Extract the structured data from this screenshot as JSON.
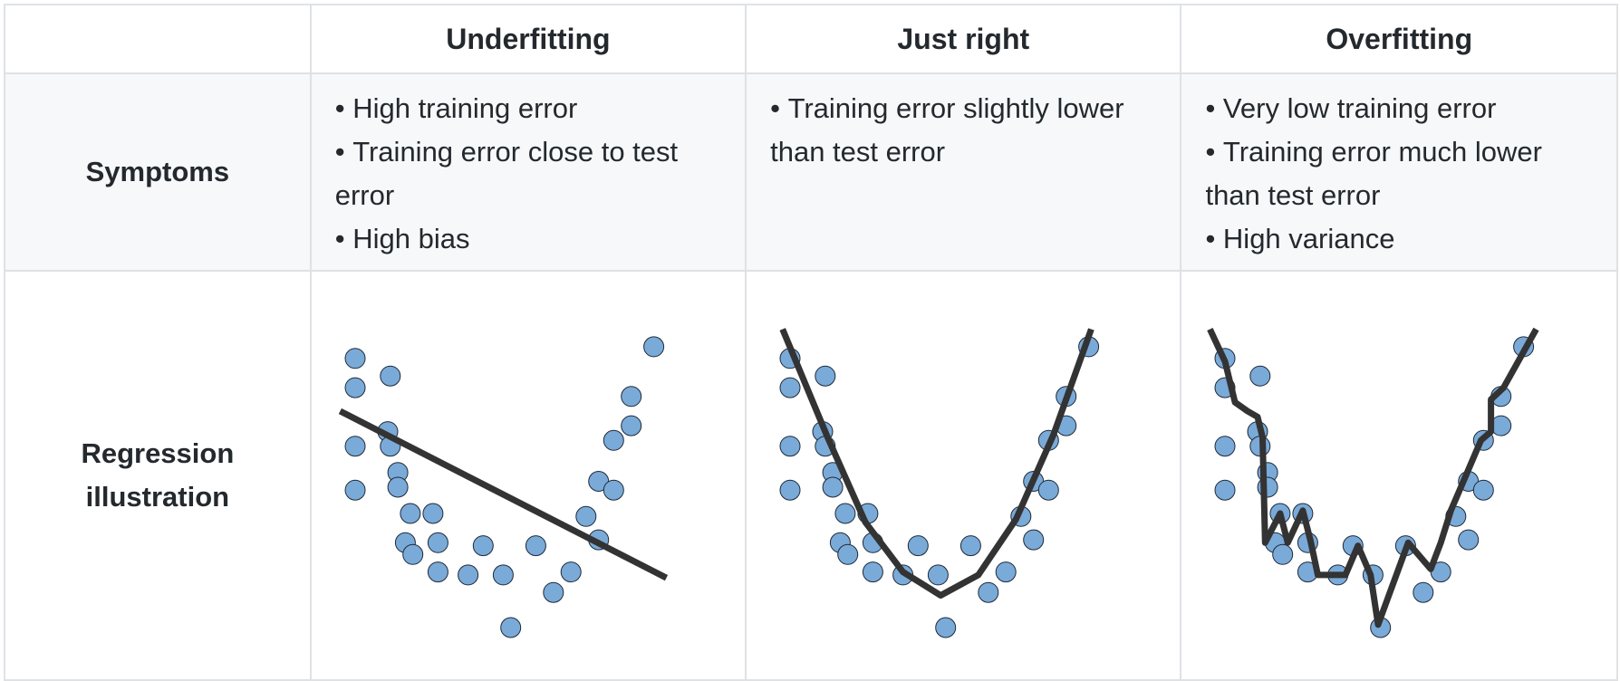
{
  "columns": [
    "",
    "Underfitting",
    "Just right",
    "Overfitting"
  ],
  "rows": {
    "symptoms": {
      "label": "Symptoms",
      "cells": [
        [
          "High training error",
          "Training error close to test error",
          "High bias"
        ],
        [
          "Training error slightly lower than test error"
        ],
        [
          "Very low training error",
          "Training error much lower than test error",
          "High variance"
        ]
      ]
    },
    "regression": {
      "label": "Regression illustration"
    }
  },
  "style": {
    "point_fill": "#7aaad8",
    "point_stroke": "#1f2a38",
    "curve_color": "#333333",
    "header_bg": "#ffffff",
    "symptom_bg": "#f6f8fa",
    "border": "#dfe2e5"
  },
  "chart_data": [
    {
      "type": "scatter",
      "title": "Underfitting",
      "points": [
        [
          0.0,
          9.2
        ],
        [
          0.0,
          8.2
        ],
        [
          0.0,
          6.2
        ],
        [
          0.0,
          4.7
        ],
        [
          1.4,
          8.6
        ],
        [
          1.3,
          6.7
        ],
        [
          1.4,
          6.2
        ],
        [
          1.7,
          5.3
        ],
        [
          1.7,
          4.8
        ],
        [
          2.2,
          3.9
        ],
        [
          2.0,
          2.9
        ],
        [
          2.3,
          2.5
        ],
        [
          3.1,
          3.9
        ],
        [
          3.3,
          2.9
        ],
        [
          3.3,
          1.9
        ],
        [
          4.5,
          1.8
        ],
        [
          5.1,
          2.8
        ],
        [
          5.9,
          1.8
        ],
        [
          6.2,
          0.0
        ],
        [
          7.2,
          2.8
        ],
        [
          7.9,
          1.2
        ],
        [
          8.6,
          1.9
        ],
        [
          9.2,
          3.8
        ],
        [
          9.7,
          3.0
        ],
        [
          9.7,
          5.0
        ],
        [
          10.3,
          4.7
        ],
        [
          10.3,
          6.4
        ],
        [
          11.0,
          6.9
        ],
        [
          11.0,
          7.9
        ],
        [
          11.9,
          9.6
        ]
      ],
      "fit": {
        "kind": "linear",
        "points": [
          [
            -0.6,
            7.4
          ],
          [
            12.4,
            1.7
          ]
        ]
      }
    },
    {
      "type": "scatter",
      "title": "Just right",
      "points": [
        [
          0.0,
          9.2
        ],
        [
          0.0,
          8.2
        ],
        [
          0.0,
          6.2
        ],
        [
          0.0,
          4.7
        ],
        [
          1.4,
          8.6
        ],
        [
          1.3,
          6.7
        ],
        [
          1.4,
          6.2
        ],
        [
          1.7,
          5.3
        ],
        [
          1.7,
          4.8
        ],
        [
          2.2,
          3.9
        ],
        [
          2.0,
          2.9
        ],
        [
          2.3,
          2.5
        ],
        [
          3.1,
          3.9
        ],
        [
          3.3,
          2.9
        ],
        [
          3.3,
          1.9
        ],
        [
          4.5,
          1.8
        ],
        [
          5.1,
          2.8
        ],
        [
          5.9,
          1.8
        ],
        [
          6.2,
          0.0
        ],
        [
          7.2,
          2.8
        ],
        [
          7.9,
          1.2
        ],
        [
          8.6,
          1.9
        ],
        [
          9.2,
          3.8
        ],
        [
          9.7,
          3.0
        ],
        [
          9.7,
          5.0
        ],
        [
          10.3,
          4.7
        ],
        [
          10.3,
          6.4
        ],
        [
          11.0,
          6.9
        ],
        [
          11.0,
          7.9
        ],
        [
          11.9,
          9.6
        ]
      ],
      "fit": {
        "kind": "quadratic",
        "points": [
          [
            -0.3,
            10.2
          ],
          [
            1.5,
            6.5
          ],
          [
            3.0,
            3.6
          ],
          [
            4.5,
            1.9
          ],
          [
            6.0,
            1.1
          ],
          [
            7.5,
            1.8
          ],
          [
            9.0,
            3.7
          ],
          [
            10.5,
            6.6
          ],
          [
            12.0,
            10.2
          ]
        ]
      }
    },
    {
      "type": "scatter",
      "title": "Overfitting",
      "points": [
        [
          0.0,
          9.2
        ],
        [
          0.0,
          8.2
        ],
        [
          0.0,
          6.2
        ],
        [
          0.0,
          4.7
        ],
        [
          1.4,
          8.6
        ],
        [
          1.3,
          6.7
        ],
        [
          1.4,
          6.2
        ],
        [
          1.7,
          5.3
        ],
        [
          1.7,
          4.8
        ],
        [
          2.2,
          3.9
        ],
        [
          2.0,
          2.9
        ],
        [
          2.3,
          2.5
        ],
        [
          3.1,
          3.9
        ],
        [
          3.3,
          2.9
        ],
        [
          3.3,
          1.9
        ],
        [
          4.5,
          1.8
        ],
        [
          5.1,
          2.8
        ],
        [
          5.9,
          1.8
        ],
        [
          6.2,
          0.0
        ],
        [
          7.2,
          2.8
        ],
        [
          7.9,
          1.2
        ],
        [
          8.6,
          1.9
        ],
        [
          9.2,
          3.8
        ],
        [
          9.7,
          3.0
        ],
        [
          9.7,
          5.0
        ],
        [
          10.3,
          4.7
        ],
        [
          10.3,
          6.4
        ],
        [
          11.0,
          6.9
        ],
        [
          11.0,
          7.9
        ],
        [
          11.9,
          9.6
        ]
      ],
      "fit": {
        "kind": "interpolating",
        "points": [
          [
            -0.6,
            10.2
          ],
          [
            0.0,
            9.1
          ],
          [
            0.4,
            7.7
          ],
          [
            0.9,
            7.4
          ],
          [
            1.3,
            7.2
          ],
          [
            1.5,
            6.5
          ],
          [
            1.6,
            2.9
          ],
          [
            2.2,
            3.9
          ],
          [
            2.5,
            2.9
          ],
          [
            3.1,
            4.0
          ],
          [
            3.4,
            3.0
          ],
          [
            3.7,
            1.8
          ],
          [
            4.8,
            1.8
          ],
          [
            5.3,
            2.8
          ],
          [
            5.8,
            1.8
          ],
          [
            6.1,
            0.1
          ],
          [
            7.3,
            2.9
          ],
          [
            8.2,
            2.0
          ],
          [
            8.6,
            2.9
          ],
          [
            9.0,
            4.0
          ],
          [
            9.4,
            4.8
          ],
          [
            10.2,
            6.4
          ],
          [
            10.6,
            6.7
          ],
          [
            10.6,
            7.8
          ],
          [
            11.1,
            8.2
          ],
          [
            12.4,
            10.2
          ]
        ]
      }
    }
  ]
}
